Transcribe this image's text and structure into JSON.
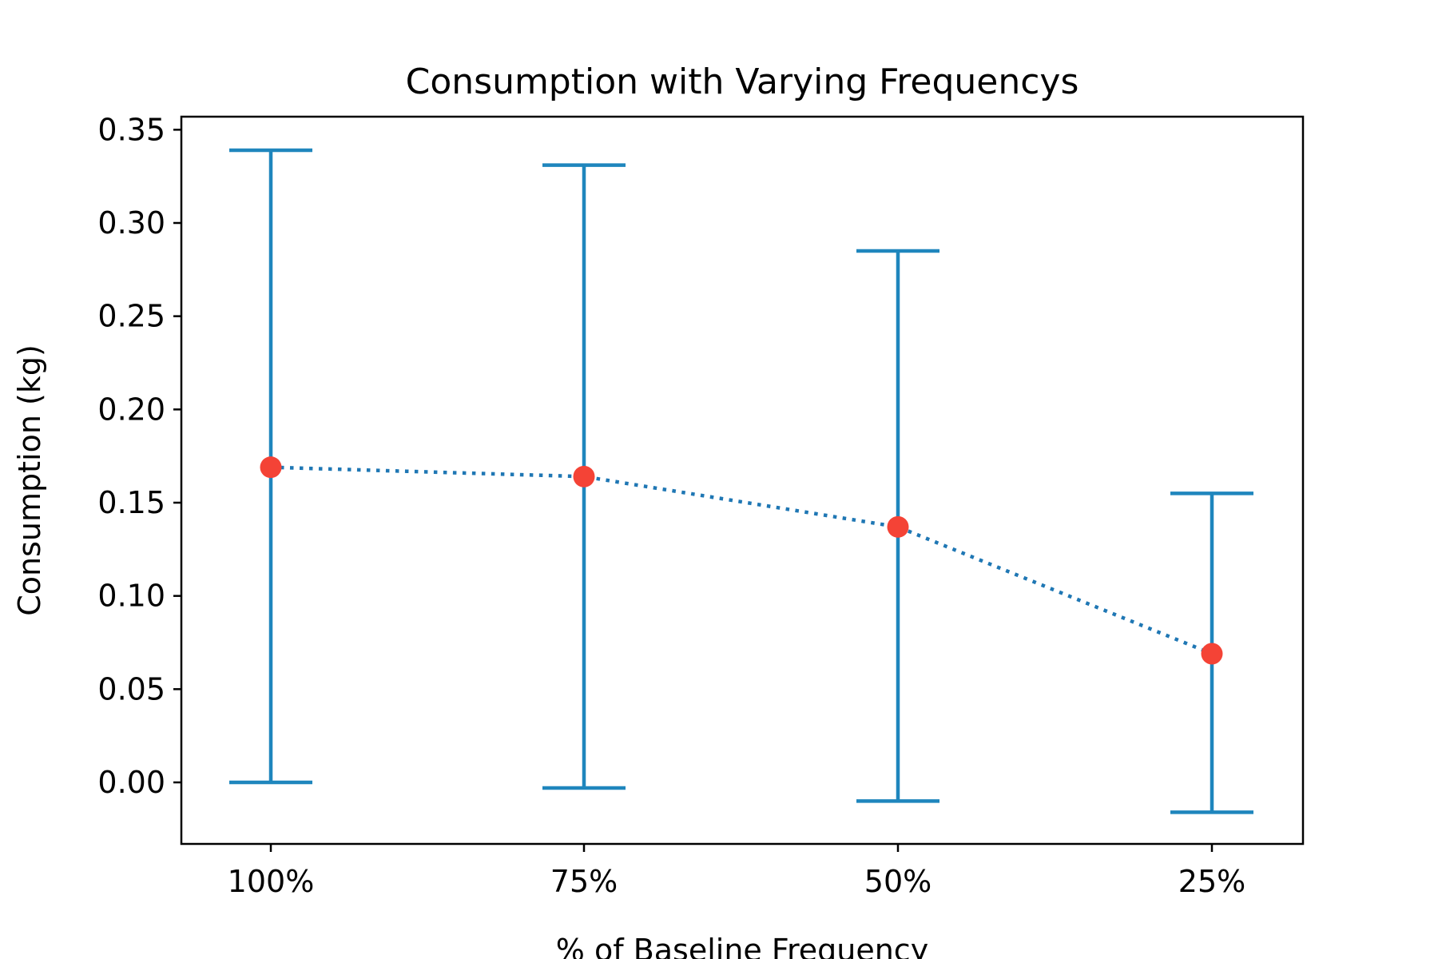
{
  "chart_data": {
    "type": "errorbar-line",
    "title": "Consumption with Varying Frequencys",
    "xlabel": "% of Baseline Frequency",
    "ylabel": "Consumption (kg)",
    "categories": [
      "100%",
      "75%",
      "50%",
      "25%"
    ],
    "series": [
      {
        "values": [
          0.169,
          0.164,
          0.137,
          0.069
        ],
        "err_low": [
          0.0,
          -0.003,
          -0.01,
          -0.016
        ],
        "err_high": [
          0.339,
          0.331,
          0.285,
          0.155
        ]
      }
    ],
    "ylim": [
      -0.033,
      0.357
    ],
    "yticks": [
      0.0,
      0.05,
      0.1,
      0.15,
      0.2,
      0.25,
      0.3,
      0.35
    ],
    "ytick_labels": [
      "0.00",
      "0.05",
      "0.10",
      "0.15",
      "0.20",
      "0.25",
      "0.30",
      "0.35"
    ],
    "grid": false,
    "line_style": "dotted",
    "colors": {
      "errorbar": "#1f86bd",
      "marker": "#f44336",
      "line": "#1f77b4",
      "axis": "#000000"
    }
  }
}
